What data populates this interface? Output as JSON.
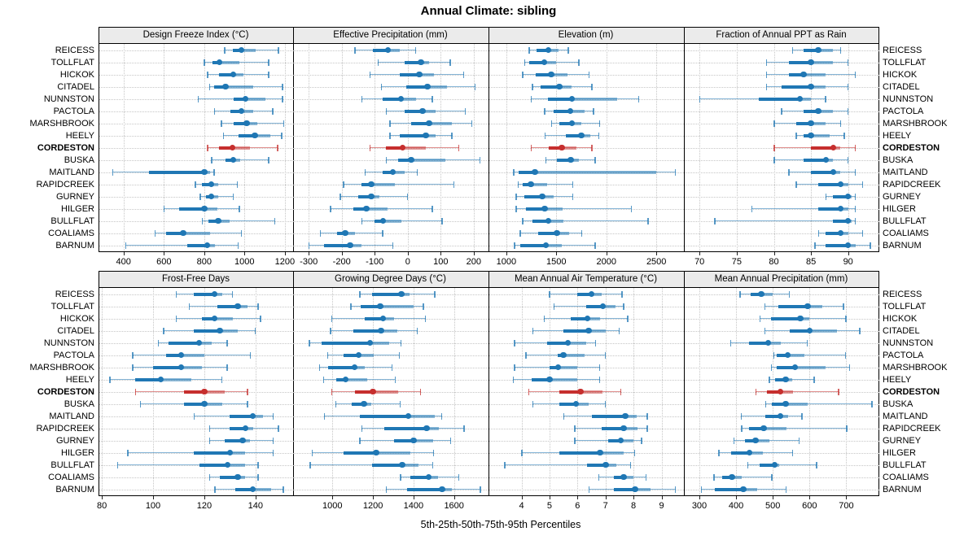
{
  "title": "Annual Climate: sibling",
  "caption": "5th-25th-50th-75th-95th Percentiles",
  "colors": {
    "series_blue": "#1f77b4",
    "highlight_red": "#c62f2e",
    "grid": "#c6c6c6",
    "strip_bg": "#ebebeb",
    "frame": "#000000"
  },
  "chart_data": {
    "type": "dotplot-interval",
    "title": "Annual Climate: sibling",
    "caption": "5th-25th-50th-75th-95th Percentiles",
    "percentile_labels": [
      "5th",
      "25th",
      "50th",
      "75th",
      "95th"
    ],
    "legend_position": "none",
    "grid": "dotted",
    "layout": {
      "rows": 2,
      "cols": 4,
      "station_labels_left": true,
      "station_labels_right": true
    },
    "stations": [
      "REICESS",
      "TOLLFLAT",
      "HICKOK",
      "CITADEL",
      "NUNNSTON",
      "PACTOLA",
      "MARSHBROOK",
      "HEELY",
      "CORDESTON",
      "BUSKA",
      "MAITLAND",
      "RAPIDCREEK",
      "GURNEY",
      "HILGER",
      "BULLFLAT",
      "COALIAMS",
      "BARNUM"
    ],
    "highlight_station": "CORDESTON",
    "panels": [
      {
        "title": "Design Freeze Index (°C)",
        "xlim": [
          280,
          1245
        ],
        "ticks": [
          400,
          600,
          800,
          1000,
          1200
        ],
        "values": [
          [
            900,
            940,
            985,
            1055,
            1170
          ],
          [
            800,
            840,
            875,
            975,
            1120
          ],
          [
            815,
            875,
            945,
            995,
            1120
          ],
          [
            825,
            850,
            905,
            1045,
            1190
          ],
          [
            770,
            945,
            1005,
            1105,
            1190
          ],
          [
            850,
            930,
            985,
            1045,
            1140
          ],
          [
            885,
            945,
            1010,
            1065,
            1195
          ],
          [
            895,
            970,
            1050,
            1130,
            1185
          ],
          [
            815,
            875,
            940,
            1025,
            1165
          ],
          [
            835,
            905,
            945,
            980,
            1120
          ],
          [
            345,
            525,
            800,
            830,
            850
          ],
          [
            755,
            790,
            835,
            870,
            965
          ],
          [
            780,
            810,
            835,
            870,
            945
          ],
          [
            600,
            675,
            800,
            865,
            975
          ],
          [
            790,
            820,
            870,
            925,
            1150
          ],
          [
            555,
            610,
            695,
            830,
            985
          ],
          [
            410,
            715,
            815,
            855,
            970
          ]
        ]
      },
      {
        "title": "Effective Precipitation (mm)",
        "xlim": [
          -345,
          245
        ],
        "ticks": [
          -300,
          -200,
          -100,
          0,
          100,
          200
        ],
        "values": [
          [
            -160,
            -105,
            -60,
            -25,
            25
          ],
          [
            -90,
            -10,
            40,
            65,
            130
          ],
          [
            -115,
            -25,
            35,
            80,
            170
          ],
          [
            -80,
            -5,
            60,
            120,
            205
          ],
          [
            -140,
            -75,
            -20,
            25,
            75
          ],
          [
            -65,
            -10,
            45,
            85,
            175
          ],
          [
            -55,
            10,
            65,
            135,
            195
          ],
          [
            -55,
            -25,
            55,
            85,
            135
          ],
          [
            -115,
            -65,
            -15,
            55,
            155
          ],
          [
            -65,
            -30,
            10,
            115,
            220
          ],
          [
            -130,
            -75,
            -45,
            -10,
            30
          ],
          [
            -195,
            -140,
            -110,
            -40,
            140
          ],
          [
            -205,
            -150,
            -110,
            -85,
            0
          ],
          [
            -235,
            -165,
            -125,
            -60,
            75
          ],
          [
            -140,
            -100,
            -75,
            -20,
            105
          ],
          [
            -265,
            -215,
            -190,
            -160,
            -75
          ],
          [
            -300,
            -255,
            -175,
            -140,
            -45
          ]
        ]
      },
      {
        "title": "Elevation (m)",
        "xlim": [
          830,
          2775
        ],
        "ticks": [
          1000,
          1500,
          2000,
          2500
        ],
        "values": [
          [
            1225,
            1300,
            1420,
            1520,
            1620
          ],
          [
            1180,
            1230,
            1380,
            1495,
            1725
          ],
          [
            1160,
            1290,
            1450,
            1615,
            1830
          ],
          [
            1260,
            1345,
            1530,
            1655,
            1855
          ],
          [
            1245,
            1415,
            1655,
            2110,
            2325
          ],
          [
            1380,
            1475,
            1640,
            1780,
            1875
          ],
          [
            1450,
            1530,
            1655,
            1750,
            1935
          ],
          [
            1385,
            1595,
            1750,
            1840,
            1925
          ],
          [
            1245,
            1420,
            1555,
            1705,
            1855
          ],
          [
            1395,
            1505,
            1645,
            1725,
            1890
          ],
          [
            1070,
            1125,
            1285,
            2495,
            2690
          ],
          [
            1115,
            1160,
            1245,
            1405,
            1665
          ],
          [
            1095,
            1180,
            1360,
            1470,
            1665
          ],
          [
            1095,
            1195,
            1385,
            1560,
            2250
          ],
          [
            1160,
            1260,
            1420,
            1570,
            2420
          ],
          [
            1135,
            1315,
            1505,
            1630,
            1755
          ],
          [
            1080,
            1135,
            1395,
            1555,
            1890
          ]
        ]
      },
      {
        "title": "Fraction of Annual PPT as Rain",
        "xlim": [
          68,
          94.2
        ],
        "ticks": [
          70,
          75,
          80,
          85,
          90
        ],
        "values": [
          [
            82.5,
            84,
            86,
            88,
            89
          ],
          [
            79,
            82,
            85,
            88,
            90
          ],
          [
            79,
            82,
            84,
            87,
            91
          ],
          [
            79,
            81,
            85,
            87,
            90
          ],
          [
            70,
            78,
            83.5,
            85,
            87
          ],
          [
            81,
            84,
            86,
            88,
            90
          ],
          [
            80,
            83,
            85,
            87,
            89
          ],
          [
            83,
            84,
            85,
            87.5,
            89.5
          ],
          [
            80,
            85,
            88,
            89,
            91
          ],
          [
            80,
            84,
            87,
            88,
            90
          ],
          [
            82,
            85,
            88,
            89,
            91
          ],
          [
            83,
            86,
            89,
            90,
            92
          ],
          [
            87,
            88,
            90,
            90.5,
            91
          ],
          [
            77,
            86,
            89,
            90,
            91
          ],
          [
            72,
            88,
            90,
            90.5,
            91
          ],
          [
            86,
            87,
            89,
            90,
            92
          ],
          [
            85.5,
            87,
            90,
            91,
            93
          ]
        ]
      },
      {
        "title": "Frost-Free Days",
        "xlim": [
          79,
          155
        ],
        "ticks": [
          80,
          100,
          120,
          140
        ],
        "values": [
          [
            109,
            116,
            124,
            127,
            131
          ],
          [
            114,
            125,
            133,
            137,
            141
          ],
          [
            109,
            119,
            124,
            131,
            142
          ],
          [
            104,
            116,
            126,
            133,
            140
          ],
          [
            102,
            106,
            118,
            123,
            129
          ],
          [
            92,
            105,
            111,
            120,
            138
          ],
          [
            92,
            100,
            111,
            119,
            129
          ],
          [
            83,
            93,
            103,
            115,
            127
          ],
          [
            93,
            112,
            120,
            128,
            137
          ],
          [
            95,
            112,
            120,
            127,
            137
          ],
          [
            116,
            130,
            139,
            143,
            147
          ],
          [
            122,
            130,
            136,
            139,
            149
          ],
          [
            122,
            128,
            135,
            138,
            147
          ],
          [
            90,
            116,
            130,
            136,
            147
          ],
          [
            86,
            118,
            129,
            136,
            141
          ],
          [
            122,
            126,
            133,
            136,
            141
          ],
          [
            124,
            132,
            139,
            146,
            151
          ]
        ]
      },
      {
        "title": "Growing Degree Days (°C)",
        "xlim": [
          810,
          1770
        ],
        "ticks": [
          1000,
          1200,
          1400,
          1600
        ],
        "values": [
          [
            1135,
            1195,
            1340,
            1380,
            1505
          ],
          [
            1090,
            1140,
            1235,
            1400,
            1450
          ],
          [
            995,
            1160,
            1250,
            1305,
            1460
          ],
          [
            990,
            1105,
            1240,
            1320,
            1420
          ],
          [
            885,
            945,
            1185,
            1280,
            1340
          ],
          [
            975,
            1055,
            1130,
            1205,
            1330
          ],
          [
            935,
            980,
            1110,
            1160,
            1295
          ],
          [
            955,
            1020,
            1065,
            1170,
            1310
          ],
          [
            995,
            1110,
            1200,
            1325,
            1435
          ],
          [
            1015,
            1095,
            1155,
            1190,
            1335
          ],
          [
            960,
            1135,
            1375,
            1505,
            1540
          ],
          [
            1145,
            1255,
            1465,
            1525,
            1650
          ],
          [
            1135,
            1305,
            1400,
            1495,
            1585
          ],
          [
            900,
            1055,
            1215,
            1385,
            1500
          ],
          [
            890,
            1195,
            1345,
            1425,
            1495
          ],
          [
            1335,
            1385,
            1475,
            1520,
            1625
          ],
          [
            1265,
            1370,
            1540,
            1590,
            1730
          ]
        ]
      },
      {
        "title": "Mean Annual Air Temperature (°C)",
        "xlim": [
          2.85,
          9.8
        ],
        "ticks": [
          4,
          5,
          6,
          7,
          8,
          9
        ],
        "values": [
          [
            5.0,
            6.0,
            6.5,
            6.85,
            7.6
          ],
          [
            5.15,
            6.3,
            6.9,
            7.35,
            7.65
          ],
          [
            4.8,
            5.75,
            6.35,
            6.8,
            7.8
          ],
          [
            4.4,
            5.5,
            6.4,
            7.0,
            7.5
          ],
          [
            3.75,
            4.9,
            5.65,
            6.3,
            6.65
          ],
          [
            4.15,
            5.3,
            5.5,
            6.25,
            7.0
          ],
          [
            3.75,
            5.0,
            5.3,
            6.0,
            6.8
          ],
          [
            3.7,
            4.35,
            5.0,
            6.0,
            6.8
          ],
          [
            4.25,
            5.35,
            6.1,
            6.9,
            7.55
          ],
          [
            4.4,
            5.35,
            5.95,
            6.4,
            7.0
          ],
          [
            5.5,
            6.5,
            7.7,
            8.1,
            8.5
          ],
          [
            5.9,
            6.85,
            7.65,
            8.15,
            8.5
          ],
          [
            5.9,
            7.1,
            7.55,
            8.0,
            8.3
          ],
          [
            4.0,
            5.35,
            6.8,
            7.65,
            8.05
          ],
          [
            3.4,
            6.35,
            7.0,
            7.4,
            7.9
          ],
          [
            6.75,
            7.3,
            7.65,
            8.0,
            8.45
          ],
          [
            6.4,
            7.3,
            8.05,
            8.6,
            9.5
          ]
        ]
      },
      {
        "title": "Mean Annual Precipitation (mm)",
        "xlim": [
          260,
          790
        ],
        "ticks": [
          300,
          400,
          500,
          600,
          700
        ],
        "values": [
          [
            410,
            440,
            468,
            500,
            545
          ],
          [
            478,
            515,
            595,
            635,
            693
          ],
          [
            465,
            495,
            575,
            600,
            700
          ],
          [
            478,
            545,
            600,
            675,
            737
          ],
          [
            385,
            435,
            487,
            522,
            594
          ],
          [
            502,
            510,
            540,
            585,
            698
          ],
          [
            495,
            510,
            560,
            643,
            710
          ],
          [
            490,
            505,
            535,
            552,
            613
          ],
          [
            453,
            483,
            520,
            555,
            680
          ],
          [
            480,
            498,
            535,
            595,
            770
          ],
          [
            413,
            480,
            520,
            542,
            580
          ],
          [
            415,
            435,
            475,
            537,
            702
          ],
          [
            394,
            424,
            453,
            490,
            572
          ],
          [
            352,
            387,
            436,
            473,
            554
          ],
          [
            431,
            465,
            505,
            517,
            620
          ],
          [
            339,
            361,
            389,
            416,
            498
          ],
          [
            305,
            342,
            420,
            458,
            537
          ]
        ]
      }
    ]
  }
}
